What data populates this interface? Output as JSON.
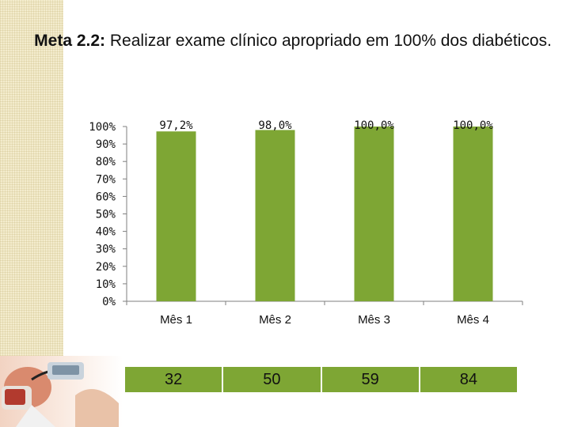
{
  "title": {
    "lead": "Meta 2.2:",
    "rest": "Realizar exame clínico apropriado em 100% dos diabéticos."
  },
  "colors": {
    "bar": "#7ea634",
    "axis": "#7f7f7f",
    "strip": "#f3eccd"
  },
  "icons": {
    "photo": "doctor-measuring-blood-pressure-photo"
  },
  "chart_data": {
    "type": "bar",
    "categories": [
      "Mês 1",
      "Mês 2",
      "Mês 3",
      "Mês 4"
    ],
    "values": [
      97.2,
      98.0,
      100.0,
      100.0
    ],
    "data_labels": [
      "97,2%",
      "98,0%",
      "100,0%",
      "100,0%"
    ],
    "yticks": [
      "0%",
      "10%",
      "20%",
      "30%",
      "40%",
      "50%",
      "60%",
      "70%",
      "80%",
      "90%",
      "100%"
    ],
    "ylim": [
      0,
      100
    ],
    "grid": false,
    "legend": "none",
    "counts": [
      "32",
      "50",
      "59",
      "84"
    ]
  }
}
